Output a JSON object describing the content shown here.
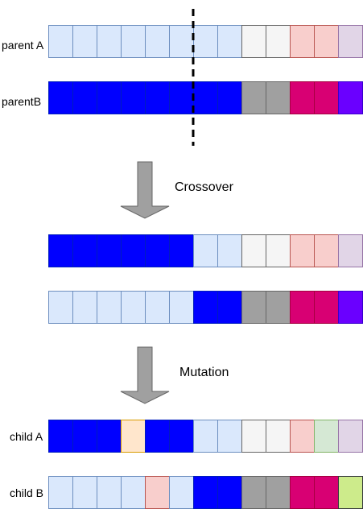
{
  "colors": {
    "light_blue": "#dae8fc",
    "blue": "#0000ff",
    "light_gray": "#f5f5f5",
    "gray": "#a0a0a0",
    "pink": "#f8cecc",
    "magenta": "#d80073",
    "lavender": "#e1d5e7",
    "violet": "#6a00ff",
    "peach": "#ffe6cc",
    "mint": "#d5e8d4",
    "lime": "#cdeb8b"
  },
  "rows": [
    {
      "id": "parent-a",
      "label": "parent A",
      "genes": [
        "light_blue",
        "light_blue",
        "light_blue",
        "light_blue",
        "light_blue",
        "light_blue",
        "light_blue",
        "light_blue",
        "light_gray",
        "light_gray",
        "pink",
        "pink",
        "lavender"
      ]
    },
    {
      "id": "parent-b",
      "label": "parentB",
      "genes": [
        "blue",
        "blue",
        "blue",
        "blue",
        "blue",
        "blue",
        "blue",
        "blue",
        "gray",
        "gray",
        "magenta",
        "magenta",
        "violet"
      ]
    },
    {
      "id": "crossover-a",
      "label": "",
      "genes": [
        "blue",
        "blue",
        "blue",
        "blue",
        "blue",
        "blue",
        "light_blue",
        "light_blue",
        "light_gray",
        "light_gray",
        "pink",
        "pink",
        "lavender"
      ]
    },
    {
      "id": "crossover-b",
      "label": "",
      "genes": [
        "light_blue",
        "light_blue",
        "light_blue",
        "light_blue",
        "light_blue",
        "light_blue",
        "blue",
        "blue",
        "gray",
        "gray",
        "magenta",
        "magenta",
        "violet"
      ]
    },
    {
      "id": "child-a",
      "label": "child A",
      "genes": [
        "blue",
        "blue",
        "blue",
        "peach",
        "blue",
        "blue",
        "light_blue",
        "light_blue",
        "light_gray",
        "light_gray",
        "pink",
        "mint",
        "lavender"
      ]
    },
    {
      "id": "child-b",
      "label": "child B",
      "genes": [
        "light_blue",
        "light_blue",
        "light_blue",
        "light_blue",
        "pink",
        "light_blue",
        "blue",
        "blue",
        "gray",
        "gray",
        "magenta",
        "magenta",
        "lime"
      ]
    }
  ],
  "steps": [
    {
      "id": "crossover",
      "label": "Crossover"
    },
    {
      "id": "mutation",
      "label": "Mutation"
    }
  ],
  "cut_point_gene_index": 6
}
